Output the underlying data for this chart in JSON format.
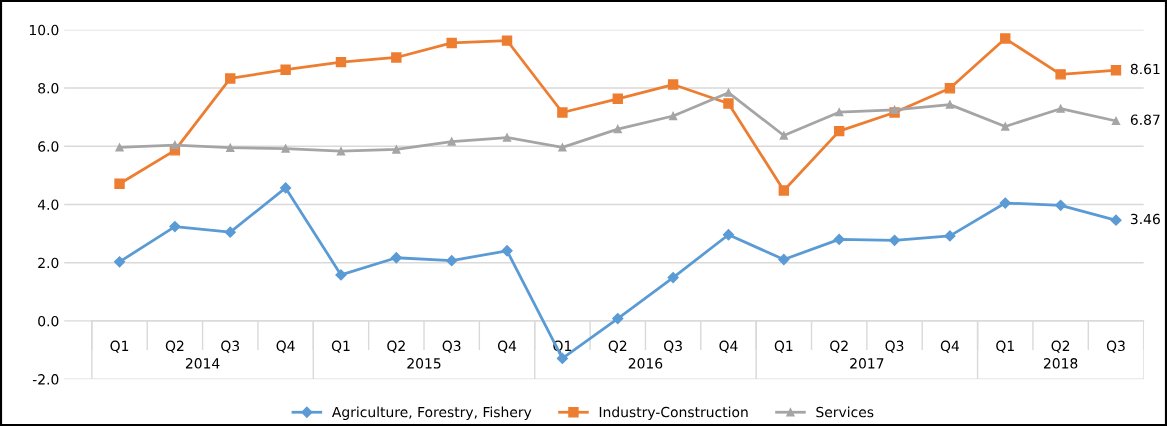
{
  "chart_data": {
    "type": "line",
    "categories": [
      "Q1",
      "Q2",
      "Q3",
      "Q4",
      "Q1",
      "Q2",
      "Q3",
      "Q4",
      "Q1",
      "Q2",
      "Q3",
      "Q4",
      "Q1",
      "Q2",
      "Q3",
      "Q4",
      "Q1",
      "Q2",
      "Q3"
    ],
    "series": [
      {
        "name": "Agriculture, Forestry, Fishery",
        "color": "#5b9bd5",
        "marker": "diamond",
        "values": [
          2.03,
          3.24,
          3.05,
          4.57,
          1.58,
          2.17,
          2.07,
          2.41,
          -1.29,
          0.08,
          1.49,
          2.96,
          2.11,
          2.8,
          2.77,
          2.92,
          4.05,
          3.97,
          3.46
        ],
        "value_labels": [
          null,
          null,
          null,
          null,
          null,
          null,
          null,
          null,
          null,
          null,
          null,
          null,
          null,
          null,
          null,
          null,
          null,
          null,
          "3.46"
        ]
      },
      {
        "name": "Industry-Construction",
        "color": "#ed7d31",
        "marker": "square",
        "values": [
          4.71,
          5.86,
          8.33,
          8.63,
          8.89,
          9.05,
          9.55,
          9.63,
          7.16,
          7.63,
          8.12,
          7.47,
          4.48,
          6.52,
          7.16,
          7.99,
          9.7,
          8.47,
          8.61
        ],
        "value_labels": [
          null,
          null,
          null,
          null,
          null,
          null,
          null,
          null,
          null,
          null,
          null,
          null,
          null,
          null,
          null,
          null,
          null,
          null,
          "8.61"
        ]
      },
      {
        "name": "Services",
        "color": "#a5a5a5",
        "marker": "triangle",
        "values": [
          5.96,
          6.04,
          5.95,
          5.92,
          5.83,
          5.89,
          6.16,
          6.3,
          5.96,
          6.59,
          7.04,
          7.84,
          6.37,
          7.17,
          7.25,
          7.43,
          6.68,
          7.29,
          6.87
        ],
        "value_labels": [
          null,
          null,
          null,
          null,
          null,
          null,
          null,
          null,
          null,
          null,
          null,
          null,
          null,
          null,
          null,
          null,
          null,
          null,
          "6.87"
        ]
      }
    ],
    "annotations": [
      "2014",
      "2015",
      "2016",
      "2017",
      "2018"
    ],
    "ylim": [
      -2.0,
      10.0
    ],
    "yticks": [
      {
        "value": -2,
        "label": "-2.0"
      },
      {
        "value": 0,
        "label": "0.0"
      },
      {
        "value": 2,
        "label": "2.0"
      },
      {
        "value": 4,
        "label": "4.0"
      },
      {
        "value": 6,
        "label": "6.0"
      },
      {
        "value": 8,
        "label": "8.0"
      },
      {
        "value": 10,
        "label": "10.0"
      }
    ],
    "grid": "y",
    "legend": "bottom",
    "line_style": "solid"
  }
}
